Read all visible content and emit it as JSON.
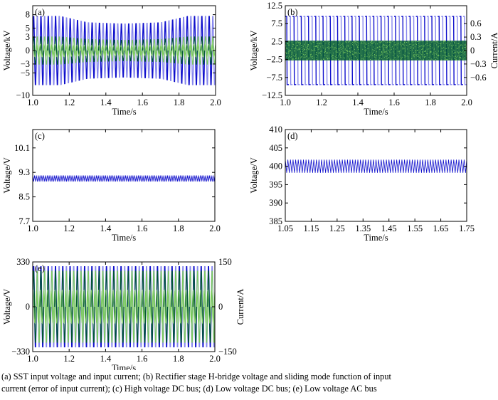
{
  "colors": {
    "dark_blue": "#1010cc",
    "light_blue": "#8888ee",
    "dark_green": "#005a2a",
    "light_green": "#7ccc5c",
    "frame": "#000000"
  },
  "chart_data": [
    {
      "id": "a",
      "type": "line",
      "panel_label": "(a)",
      "xlabel": "Time/s",
      "ylabel": "Voltage/kV",
      "xlim": [
        1.0,
        2.0
      ],
      "ylim": [
        -10,
        10
      ],
      "xticks": [
        1.0,
        1.2,
        1.4,
        1.6,
        1.8,
        2.0
      ],
      "xtick_labels": [
        "1.0",
        "1.2",
        "1.4",
        "1.6",
        "1.8",
        "2.0"
      ],
      "yticks": [
        8,
        5,
        3,
        0,
        -3,
        -5,
        -10
      ],
      "ytick_labels": [
        "8",
        "5",
        "3",
        "0",
        "−3",
        "−5",
        "−10"
      ],
      "series": [
        {
          "style": "voltage",
          "color": "#1010cc",
          "alt_color": "#8888ee",
          "cycles": 50,
          "envelope_t": [
            1.0,
            1.15,
            1.3,
            1.5,
            1.7,
            1.85,
            2.0
          ],
          "envelope_amp": [
            8.0,
            8.0,
            6.5,
            6.2,
            6.5,
            8.0,
            8.0
          ]
        },
        {
          "style": "current",
          "color": "#005a2a",
          "alt_color": "#7ccc5c",
          "cycles": 50,
          "envelope_t": [
            1.0,
            1.15,
            1.3,
            1.5,
            1.7,
            1.85,
            2.0
          ],
          "envelope_amp": [
            3.2,
            3.2,
            2.6,
            2.4,
            2.6,
            3.2,
            3.2
          ]
        }
      ]
    },
    {
      "id": "b",
      "type": "line",
      "panel_label": "(b)",
      "xlabel": "Time/s",
      "ylabel": "Voltage/kV",
      "y2label": "Current/A",
      "xlim": [
        1.0,
        2.0
      ],
      "ylim": [
        -12.5,
        12.5
      ],
      "y2lim": [
        -1.0,
        1.0
      ],
      "xticks": [
        1.0,
        1.2,
        1.4,
        1.6,
        1.8,
        2.0
      ],
      "xtick_labels": [
        "1.0",
        "1.2",
        "1.4",
        "1.6",
        "1.8",
        "2.0"
      ],
      "yticks": [
        12.5,
        7.5,
        2.5,
        -2.5,
        -7.5,
        -12.5
      ],
      "ytick_labels": [
        "12.5",
        "7.5",
        "2.5",
        "−2.5",
        "−7.5",
        "−12.5"
      ],
      "y2ticks": [
        0.6,
        0.3,
        0,
        -0.3,
        -0.6
      ],
      "y2tick_labels": [
        "0.6",
        "0.3",
        "0",
        "−0.3",
        "−0.6"
      ],
      "series": [
        {
          "style": "hbridge",
          "color": "#1010cc",
          "alt_color": "#8888ee",
          "cycles": 50,
          "amplitude": 9.5
        },
        {
          "style": "sliding",
          "color": "#005a2a",
          "alt_color": "#7ccc5c",
          "axis": "y2",
          "amplitude": 0.22
        }
      ]
    },
    {
      "id": "c",
      "type": "line",
      "panel_label": "(c)",
      "xlabel": "Time/s",
      "ylabel": "Voltage/V",
      "xlim": [
        1.0,
        2.0
      ],
      "ylim": [
        7.7,
        10.7
      ],
      "xticks": [
        1.0,
        1.2,
        1.4,
        1.6,
        1.8,
        2.0
      ],
      "xtick_labels": [
        "1.0",
        "1.2",
        "1.4",
        "1.6",
        "1.8",
        "2.0"
      ],
      "yticks": [
        10.1,
        9.3,
        8.5,
        7.7
      ],
      "ytick_labels": [
        "10.1",
        "9.3",
        "8.5",
        "7.7"
      ],
      "series": [
        {
          "style": "ripple",
          "color": "#1010cc",
          "mean": 9.1,
          "ripple": 0.1,
          "cycles": 100
        }
      ]
    },
    {
      "id": "d",
      "type": "line",
      "panel_label": "(d)",
      "xlabel": "Time/s",
      "ylabel": "Voltage/V",
      "xlim": [
        1.05,
        1.75
      ],
      "ylim": [
        385,
        410
      ],
      "xticks": [
        1.05,
        1.15,
        1.25,
        1.35,
        1.45,
        1.55,
        1.65,
        1.75
      ],
      "xtick_labels": [
        "1.05",
        "1.15",
        "1.25",
        "1.35",
        "1.45",
        "1.55",
        "1.65",
        "1.75"
      ],
      "yticks": [
        410,
        405,
        400,
        395,
        390,
        385
      ],
      "ytick_labels": [
        "410",
        "405",
        "400",
        "395",
        "390",
        "385"
      ],
      "series": [
        {
          "style": "ripple",
          "color": "#1010cc",
          "mean": 400,
          "ripple": 1.8,
          "cycles": 70
        }
      ]
    },
    {
      "id": "e",
      "type": "line",
      "panel_label": "(e)",
      "xlabel": "Time/s",
      "ylabel": "Voltage/V",
      "y2label": "Current/A",
      "xlim": [
        1.0,
        2.0
      ],
      "ylim": [
        -330,
        330
      ],
      "y2lim": [
        -150,
        150
      ],
      "xticks": [
        1.0,
        1.2,
        1.4,
        1.6,
        1.8,
        2.0
      ],
      "xtick_labels": [
        "1.0",
        "1.2",
        "1.4",
        "1.6",
        "1.8",
        "2.0"
      ],
      "yticks": [
        330,
        0,
        -330
      ],
      "ytick_labels": [
        "330",
        "0",
        "−330"
      ],
      "y2ticks": [
        150,
        0,
        -150
      ],
      "y2tick_labels": [
        "150",
        "0",
        "−150"
      ],
      "series": [
        {
          "style": "voltage",
          "color": "#1010cc",
          "alt_color": "#8888ee",
          "cycles": 50,
          "envelope_t": [
            1.0,
            2.0
          ],
          "envelope_amp": [
            310,
            310
          ]
        },
        {
          "style": "current",
          "color": "#005a2a",
          "alt_color": "#7ccc5c",
          "cycles": 50,
          "envelope_t": [
            1.0,
            2.0
          ],
          "envelope_amp": [
            125,
            125
          ]
        }
      ]
    }
  ],
  "caption": {
    "line1": "(a) SST input voltage and  input current;  (b)  Rectifier stage  H-bridge voltage and sliding mode function of input",
    "line2": "   current  (error  of  input  current);  (c)  High voltage DC bus;  (d)  Low voltage DC bus;  (e) Low voltage AC bus"
  }
}
